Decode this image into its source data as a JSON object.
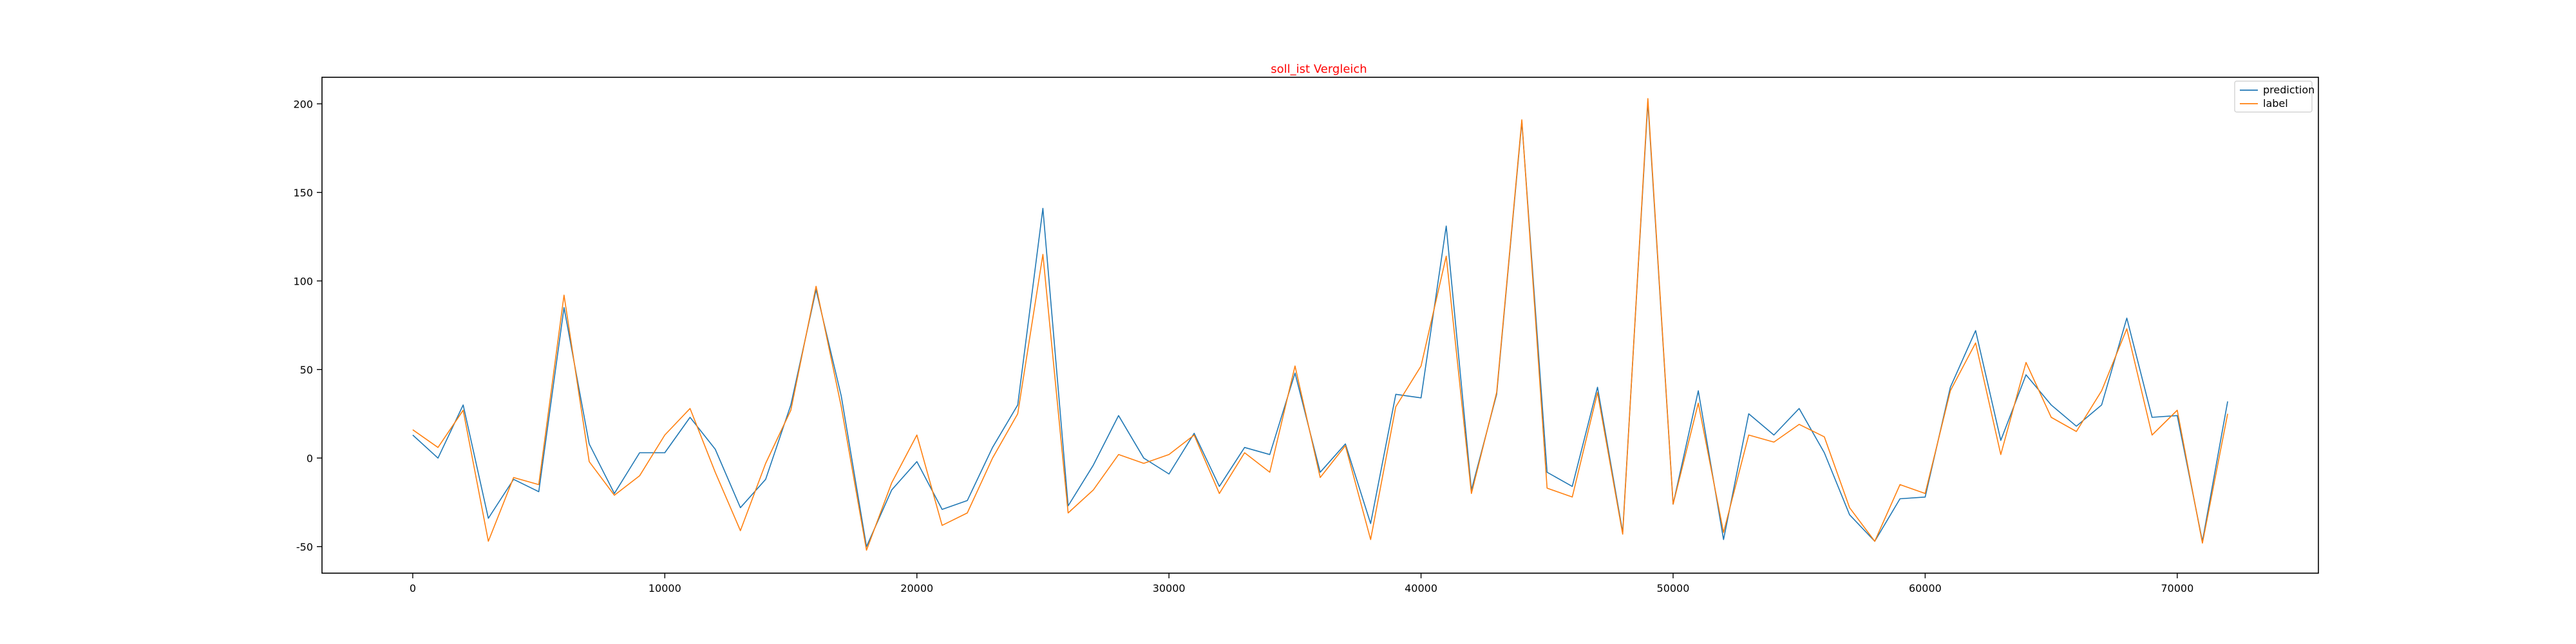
{
  "chart_data": {
    "type": "line",
    "title": "soll_ist Vergleich",
    "title_color": "#ff0000",
    "xlabel": "",
    "ylabel": "",
    "xlim": [
      -3600,
      75600
    ],
    "ylim": [
      -65,
      215
    ],
    "x_ticks": [
      0,
      10000,
      20000,
      30000,
      40000,
      50000,
      60000,
      70000
    ],
    "y_ticks": [
      -50,
      0,
      50,
      100,
      150,
      200
    ],
    "legend_position": "top-right",
    "grid": false,
    "x": [
      0,
      1000,
      2000,
      3000,
      4000,
      5000,
      6000,
      7000,
      8000,
      9000,
      10000,
      11000,
      12000,
      13000,
      14000,
      15000,
      16000,
      17000,
      18000,
      19000,
      20000,
      21000,
      22000,
      23000,
      24000,
      25000,
      26000,
      27000,
      28000,
      29000,
      30000,
      31000,
      32000,
      33000,
      34000,
      35000,
      36000,
      37000,
      38000,
      39000,
      40000,
      41000,
      42000,
      43000,
      44000,
      45000,
      46000,
      47000,
      48000,
      49000,
      50000,
      51000,
      52000,
      53000,
      54000,
      55000,
      56000,
      57000,
      58000,
      59000,
      60000,
      61000,
      62000,
      63000,
      64000,
      65000,
      66000,
      67000,
      68000,
      69000,
      70000,
      71000,
      72000
    ],
    "series": [
      {
        "name": "prediction",
        "color": "#1f77b4",
        "values": [
          13,
          0,
          30,
          -34,
          -12,
          -19,
          85,
          8,
          -20,
          3,
          3,
          23,
          5,
          -28,
          -12,
          30,
          95,
          35,
          -50,
          -18,
          -2,
          -29,
          -24,
          6,
          30,
          141,
          -27,
          -4,
          24,
          0,
          -9,
          14,
          -16,
          6,
          2,
          48,
          -8,
          8,
          -37,
          36,
          34,
          131,
          -18,
          36,
          190,
          -8,
          -16,
          40,
          -42,
          201,
          -26,
          38,
          -46,
          25,
          13,
          28,
          3,
          -32,
          -47,
          -23,
          -22,
          40,
          72,
          10,
          47,
          30,
          18,
          30,
          79,
          23,
          24,
          -47,
          32
        ]
      },
      {
        "name": "label",
        "color": "#ff7f0e",
        "values": [
          16,
          6,
          27,
          -47,
          -11,
          -15,
          92,
          -2,
          -21,
          -10,
          13,
          28,
          -8,
          -41,
          -3,
          27,
          97,
          29,
          -52,
          -14,
          13,
          -38,
          -31,
          0,
          25,
          115,
          -31,
          -18,
          2,
          -3,
          2,
          13,
          -20,
          3,
          -8,
          52,
          -11,
          7,
          -46,
          29,
          52,
          114,
          -20,
          37,
          191,
          -17,
          -22,
          37,
          -43,
          203,
          -26,
          31,
          -42,
          13,
          9,
          19,
          12,
          -28,
          -47,
          -15,
          -20,
          38,
          65,
          2,
          54,
          23,
          15,
          38,
          73,
          13,
          27,
          -48,
          25
        ]
      }
    ]
  }
}
